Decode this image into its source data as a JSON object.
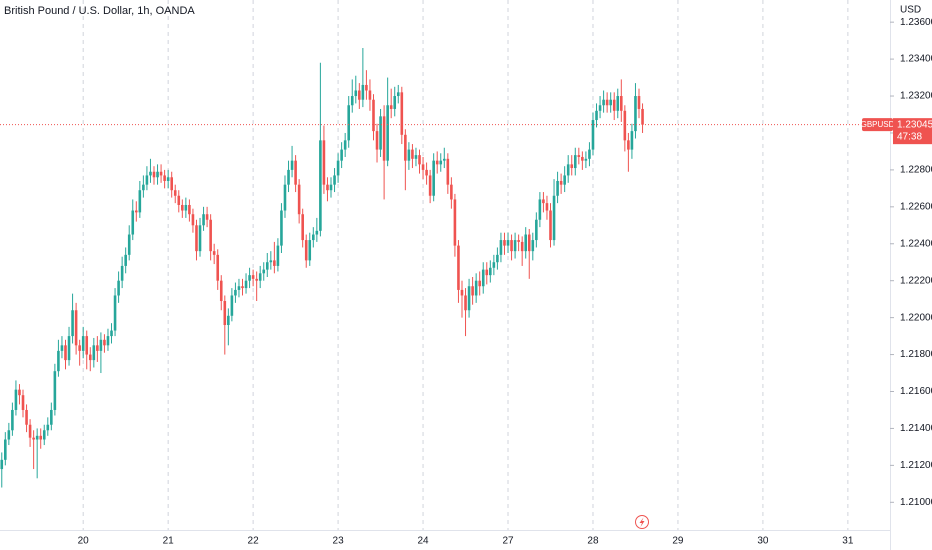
{
  "chart_data": {
    "type": "candlestick",
    "title": "British Pound / U.S. Dollar, 1h, OANDA",
    "y_axis_label": "USD",
    "symbol": "GBPUSD",
    "last_price": 1.23045,
    "countdown": "47:38",
    "up_color": "#26a69a",
    "down_color": "#ef5350",
    "ylim": [
      1.2085,
      1.2372
    ],
    "yticks": [
      {
        "value": 1.21,
        "label": "1.21000"
      },
      {
        "value": 1.212,
        "label": "1.21200"
      },
      {
        "value": 1.214,
        "label": "1.21400"
      },
      {
        "value": 1.216,
        "label": "1.21600"
      },
      {
        "value": 1.218,
        "label": "1.21800"
      },
      {
        "value": 1.22,
        "label": "1.22000"
      },
      {
        "value": 1.222,
        "label": "1.22200"
      },
      {
        "value": 1.224,
        "label": "1.22400"
      },
      {
        "value": 1.226,
        "label": "1.22600"
      },
      {
        "value": 1.228,
        "label": "1.22800"
      },
      {
        "value": 1.23,
        "label": "1.23000"
      },
      {
        "value": 1.232,
        "label": "1.23200"
      },
      {
        "value": 1.234,
        "label": "1.23400"
      },
      {
        "value": 1.236,
        "label": "1.23600"
      }
    ],
    "xlim": [
      -0.5,
      250.9
    ],
    "xticks": [
      {
        "value": 23,
        "label": "20"
      },
      {
        "value": 47,
        "label": "21"
      },
      {
        "value": 71,
        "label": "22"
      },
      {
        "value": 95,
        "label": "23"
      },
      {
        "value": 119,
        "label": "24"
      },
      {
        "value": 143,
        "label": "27"
      },
      {
        "value": 167,
        "label": "28"
      },
      {
        "value": 191,
        "label": "29"
      },
      {
        "value": 215,
        "label": "30"
      },
      {
        "value": 239,
        "label": "31"
      }
    ],
    "grid": true,
    "open": [
      1.2118,
      1.2123,
      1.2134,
      1.2139,
      1.215,
      1.2161,
      1.2158,
      1.215,
      1.2142,
      1.2135,
      1.2134,
      1.2136,
      1.2134,
      1.2139,
      1.2142,
      1.215,
      1.2171,
      1.2182,
      1.2185,
      1.2177,
      1.219,
      1.2204,
      1.2185,
      1.2182,
      1.219,
      1.218,
      1.2177,
      1.2185,
      1.2182,
      1.2188,
      1.2185,
      1.219,
      1.2193,
      1.2212,
      1.222,
      1.2228,
      1.2234,
      1.2245,
      1.2258,
      1.2257,
      1.2269,
      1.2272,
      1.2277,
      1.2279,
      1.2276,
      1.2279,
      1.2277,
      1.2274,
      1.2276,
      1.2269,
      1.2266,
      1.2261,
      1.2258,
      1.2261,
      1.2256,
      1.225,
      1.2236,
      1.225,
      1.2256,
      1.2253,
      1.2236,
      1.2234,
      1.222,
      1.2209,
      1.2196,
      1.2201,
      1.2212,
      1.2215,
      1.2217,
      1.2216,
      1.222,
      1.2223,
      1.2221,
      1.222,
      1.2224,
      1.2226,
      1.223,
      1.2231,
      1.2228,
      1.2239,
      1.2258,
      1.2272,
      1.228,
      1.2285,
      1.2272,
      1.2256,
      1.2242,
      1.2231,
      1.2242,
      1.2245,
      1.2247,
      1.2296,
      1.2272,
      1.2269,
      1.2272,
      1.2277,
      1.2285,
      1.2291,
      1.2296,
      1.2315,
      1.232,
      1.2323,
      1.2318,
      1.2326,
      1.2323,
      1.2318,
      1.2301,
      1.2291,
      1.2309,
      1.2285,
      1.2315,
      1.2313,
      1.232,
      1.2322,
      1.2299,
      1.2285,
      1.2291,
      1.2286,
      1.2288,
      1.2283,
      1.228,
      1.2277,
      1.2266,
      1.2285,
      1.2283,
      1.2285,
      1.2286,
      1.2272,
      1.2264,
      1.2239,
      1.2215,
      1.2212,
      1.2204,
      1.2217,
      1.2212,
      1.222,
      1.2217,
      1.2226,
      1.2223,
      1.2227,
      1.223,
      1.2234,
      1.2242,
      1.2239,
      1.2242,
      1.2236,
      1.2242,
      1.2241,
      1.2236,
      1.2245,
      1.2236,
      1.2242,
      1.2253,
      1.2264,
      1.2262,
      1.2258,
      1.2242,
      1.2266,
      1.2274,
      1.2272,
      1.2277,
      1.2283,
      1.2281,
      1.2288,
      1.2287,
      1.2285,
      1.2286,
      1.2291,
      1.2307,
      1.2312,
      1.2315,
      1.2318,
      1.2315,
      1.2318,
      1.2312,
      1.232,
      1.2312,
      1.2296,
      1.2291,
      1.2301,
      1.232,
      1.2313
    ],
    "high": [
      1.2127,
      1.2138,
      1.2143,
      1.2154,
      1.2166,
      1.2164,
      1.2161,
      1.2153,
      1.2145,
      1.2139,
      1.214,
      1.214,
      1.2142,
      1.2146,
      1.2154,
      1.2175,
      1.2188,
      1.219,
      1.2188,
      1.2195,
      1.2213,
      1.2208,
      1.2188,
      1.2195,
      1.2193,
      1.2184,
      1.2189,
      1.219,
      1.2192,
      1.2191,
      1.2194,
      1.2197,
      1.2216,
      1.2225,
      1.2233,
      1.2238,
      1.225,
      1.2264,
      1.2263,
      1.2274,
      1.2277,
      1.2282,
      1.2286,
      1.2282,
      1.2283,
      1.2283,
      1.228,
      1.228,
      1.2279,
      1.2272,
      1.2269,
      1.2264,
      1.2265,
      1.2264,
      1.2259,
      1.2253,
      1.2254,
      1.226,
      1.226,
      1.2256,
      1.224,
      1.2237,
      1.2223,
      1.2212,
      1.2205,
      1.2216,
      1.2219,
      1.2221,
      1.2221,
      1.2224,
      1.2227,
      1.2226,
      1.2225,
      1.2228,
      1.223,
      1.2235,
      1.2236,
      1.2241,
      1.2243,
      1.2262,
      1.2277,
      1.2285,
      1.2293,
      1.2288,
      1.2275,
      1.2259,
      1.2245,
      1.2246,
      1.2249,
      1.2254,
      1.2338,
      1.2304,
      1.2276,
      1.2276,
      1.2281,
      1.2289,
      1.2295,
      1.23,
      1.232,
      1.2329,
      1.2331,
      1.2327,
      1.2346,
      1.2334,
      1.2329,
      1.2321,
      1.2305,
      1.2313,
      1.2315,
      1.233,
      1.2324,
      1.2325,
      1.2326,
      1.2325,
      1.2302,
      1.2295,
      1.2294,
      1.2292,
      1.2291,
      1.2287,
      1.2284,
      1.228,
      1.2289,
      1.229,
      1.2289,
      1.2292,
      1.2289,
      1.2276,
      1.2267,
      1.2242,
      1.222,
      1.2216,
      1.2221,
      1.2222,
      1.2224,
      1.2225,
      1.223,
      1.223,
      1.2231,
      1.2234,
      1.2238,
      1.2246,
      1.2246,
      1.2246,
      1.2245,
      1.2246,
      1.2245,
      1.2244,
      1.2249,
      1.2248,
      1.2246,
      1.2257,
      1.2268,
      1.2268,
      1.2266,
      1.2262,
      1.2275,
      1.2279,
      1.2278,
      1.2282,
      1.2288,
      1.2288,
      1.2292,
      1.2292,
      1.229,
      1.229,
      1.2295,
      1.2311,
      1.2316,
      1.232,
      1.2323,
      1.2322,
      1.2322,
      1.2322,
      1.2324,
      1.2329,
      1.2315,
      1.23,
      1.2305,
      1.2327,
      1.2324,
      1.2316
    ],
    "low": [
      1.2108,
      1.212,
      1.2131,
      1.2136,
      1.2147,
      1.2153,
      1.2146,
      1.2138,
      1.213,
      1.2118,
      1.2113,
      1.2129,
      1.2131,
      1.2136,
      1.2139,
      1.2147,
      1.2168,
      1.2178,
      1.2172,
      1.2174,
      1.2186,
      1.218,
      1.2174,
      1.2178,
      1.2172,
      1.2171,
      1.2173,
      1.2176,
      1.217,
      1.2181,
      1.2182,
      1.2186,
      1.219,
      1.2208,
      1.2216,
      1.2224,
      1.2231,
      1.2242,
      1.2252,
      1.2254,
      1.2265,
      1.2269,
      1.2273,
      1.2272,
      1.2272,
      1.2273,
      1.227,
      1.227,
      1.2265,
      1.2262,
      1.2257,
      1.2254,
      1.2254,
      1.2252,
      1.2246,
      1.2231,
      1.2233,
      1.2247,
      1.2249,
      1.2231,
      1.2229,
      1.2215,
      1.2204,
      1.218,
      1.2185,
      1.2198,
      1.2208,
      1.2211,
      1.2212,
      1.2213,
      1.2216,
      1.2217,
      1.2209,
      1.2216,
      1.222,
      1.2222,
      1.2226,
      1.2224,
      1.2225,
      1.2235,
      1.2254,
      1.2268,
      1.2276,
      1.2268,
      1.2251,
      1.2238,
      1.2227,
      1.2228,
      1.2238,
      1.2241,
      1.2244,
      1.2267,
      1.2263,
      1.2265,
      1.2268,
      1.2273,
      1.2281,
      1.2287,
      1.2292,
      1.2311,
      1.2316,
      1.2313,
      1.2314,
      1.2318,
      1.2312,
      1.2296,
      1.2284,
      1.2287,
      1.2264,
      1.2282,
      1.2308,
      1.2309,
      1.2316,
      1.2294,
      1.2269,
      1.228,
      1.2281,
      1.2282,
      1.2278,
      1.2275,
      1.2272,
      1.2262,
      1.2263,
      1.2278,
      1.2279,
      1.2281,
      1.2267,
      1.2259,
      1.2233,
      1.2208,
      1.22,
      1.219,
      1.22,
      1.2207,
      1.2208,
      1.2212,
      1.2213,
      1.2218,
      1.2219,
      1.2223,
      1.2226,
      1.223,
      1.2234,
      1.2235,
      1.2231,
      1.2232,
      1.2236,
      1.2228,
      1.2232,
      1.2221,
      1.2231,
      1.2238,
      1.2249,
      1.2257,
      1.2253,
      1.2238,
      1.2239,
      1.2262,
      1.2267,
      1.2268,
      1.2273,
      1.2277,
      1.2277,
      1.2283,
      1.228,
      1.2281,
      1.2282,
      1.2288,
      1.2303,
      1.2308,
      1.2311,
      1.2311,
      1.2311,
      1.2307,
      1.2308,
      1.2306,
      1.229,
      1.2279,
      1.2286,
      1.2297,
      1.2308,
      1.23
    ],
    "close": [
      1.2123,
      1.2134,
      1.2139,
      1.215,
      1.2161,
      1.2158,
      1.215,
      1.2142,
      1.2135,
      1.2134,
      1.2136,
      1.2134,
      1.2139,
      1.2142,
      1.215,
      1.2171,
      1.2182,
      1.2185,
      1.2177,
      1.219,
      1.2204,
      1.2185,
      1.2182,
      1.219,
      1.218,
      1.2177,
      1.2185,
      1.2182,
      1.2188,
      1.2185,
      1.219,
      1.2193,
      1.2212,
      1.222,
      1.2228,
      1.2234,
      1.2245,
      1.2258,
      1.2257,
      1.2269,
      1.2272,
      1.2277,
      1.2279,
      1.2276,
      1.2279,
      1.2277,
      1.2274,
      1.2276,
      1.2269,
      1.2266,
      1.2261,
      1.2258,
      1.2261,
      1.2256,
      1.225,
      1.2236,
      1.225,
      1.2256,
      1.2253,
      1.2236,
      1.2234,
      1.222,
      1.2209,
      1.2196,
      1.2201,
      1.2212,
      1.2215,
      1.2217,
      1.2216,
      1.222,
      1.2223,
      1.2221,
      1.222,
      1.2224,
      1.2226,
      1.223,
      1.2231,
      1.2228,
      1.2239,
      1.2258,
      1.2272,
      1.228,
      1.2285,
      1.2272,
      1.2256,
      1.2242,
      1.2231,
      1.2242,
      1.2245,
      1.2247,
      1.2296,
      1.2272,
      1.2269,
      1.2272,
      1.2277,
      1.2285,
      1.2291,
      1.2296,
      1.2315,
      1.232,
      1.2323,
      1.2318,
      1.2326,
      1.2323,
      1.2318,
      1.2301,
      1.2291,
      1.2309,
      1.2285,
      1.2315,
      1.2313,
      1.232,
      1.2322,
      1.2299,
      1.2285,
      1.2291,
      1.2286,
      1.2288,
      1.2283,
      1.228,
      1.2277,
      1.2266,
      1.2285,
      1.2283,
      1.2285,
      1.2286,
      1.2272,
      1.2264,
      1.2239,
      1.2215,
      1.2212,
      1.2204,
      1.2217,
      1.2212,
      1.222,
      1.2217,
      1.2226,
      1.2223,
      1.2227,
      1.223,
      1.2234,
      1.2242,
      1.2239,
      1.2242,
      1.2236,
      1.2242,
      1.2241,
      1.2236,
      1.2245,
      1.2236,
      1.2242,
      1.2253,
      1.2264,
      1.2262,
      1.2258,
      1.2242,
      1.2266,
      1.2274,
      1.2272,
      1.2277,
      1.2283,
      1.2281,
      1.2288,
      1.2287,
      1.2285,
      1.2286,
      1.2291,
      1.2307,
      1.2312,
      1.2315,
      1.2318,
      1.2315,
      1.2318,
      1.2312,
      1.232,
      1.2312,
      1.2296,
      1.2291,
      1.2301,
      1.232,
      1.2313,
      1.23045
    ]
  }
}
